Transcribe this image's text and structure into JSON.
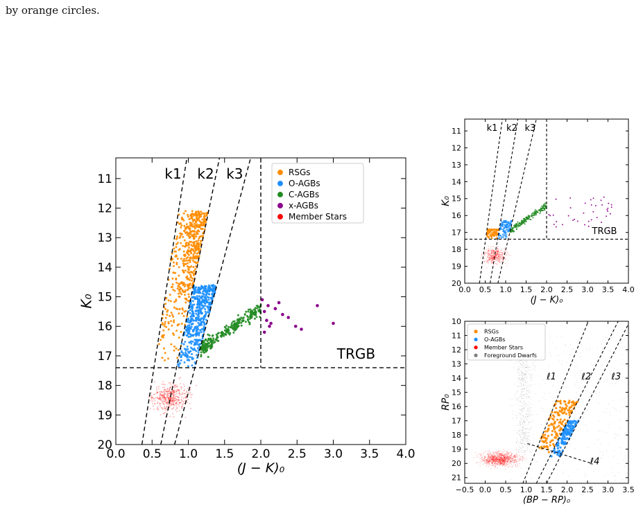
{
  "caption_fragment": "by orange circles.",
  "chart_data": [
    {
      "id": "main",
      "type": "scatter",
      "xlabel": "(J − K)₀",
      "ylabel": "K₀",
      "xlim": [
        0.0,
        4.0
      ],
      "ylim": [
        20,
        10.3
      ],
      "y_inverted": true,
      "xticks": [
        "0.0",
        "0.5",
        "1.0",
        "1.5",
        "2.0",
        "2.5",
        "3.0",
        "3.5",
        "4.0"
      ],
      "yticks": [
        "11",
        "12",
        "13",
        "14",
        "15",
        "16",
        "17",
        "18",
        "19",
        "20"
      ],
      "legend": {
        "placement": "top-right",
        "entries": [
          {
            "label": "RSGs",
            "color": "#ff8c00"
          },
          {
            "label": "O-AGBs",
            "color": "#1e90ff"
          },
          {
            "label": "C-AGBs",
            "color": "#228b22"
          },
          {
            "label": "x-AGBs",
            "color": "#8b008b"
          },
          {
            "label": "Member Stars",
            "color": "#ff0000"
          }
        ]
      },
      "boundaries": [
        {
          "label": "k1",
          "points": [
            [
              0.36,
              20.0
            ],
            [
              0.98,
              10.3
            ]
          ]
        },
        {
          "label": "k2",
          "points": [
            [
              0.62,
              20.0
            ],
            [
              1.43,
              10.3
            ]
          ]
        },
        {
          "label": "k3",
          "points": [
            [
              0.81,
              20.0
            ],
            [
              1.86,
              10.3
            ]
          ]
        },
        {
          "label": "",
          "points": [
            [
              2.0,
              10.3
            ],
            [
              2.0,
              17.4
            ]
          ]
        },
        {
          "label": "TRGB",
          "points": [
            [
              0.0,
              17.4
            ],
            [
              4.0,
              17.4
            ]
          ]
        }
      ],
      "labels": [
        {
          "text": "k1",
          "x": 0.79,
          "y": 11.0
        },
        {
          "text": "k2",
          "x": 1.24,
          "y": 11.0
        },
        {
          "text": "k3",
          "x": 1.64,
          "y": 11.0
        },
        {
          "text": "TRGB",
          "x": 3.58,
          "y": 17.1
        }
      ],
      "populations": [
        {
          "name": "Member Stars",
          "color": "#ff0000",
          "x_range": [
            0.0,
            1.6
          ],
          "y_range": [
            16.3,
            20.0
          ],
          "note": "faint background cloud"
        },
        {
          "name": "RSGs",
          "color": "#ff8c00",
          "between": [
            "k1",
            "k2"
          ],
          "y_range": [
            12.1,
            17.4
          ]
        },
        {
          "name": "O-AGBs",
          "color": "#1e90ff",
          "between": [
            "k2",
            "k3"
          ],
          "y_range": [
            14.6,
            17.4
          ]
        },
        {
          "name": "C-AGBs",
          "color": "#228b22",
          "x_range": [
            1.05,
            2.0
          ],
          "y_range": [
            14.6,
            17.4
          ]
        },
        {
          "name": "x-AGBs",
          "color": "#8b008b",
          "points": [
            [
              2.02,
              15.1
            ],
            [
              2.05,
              15.5
            ],
            [
              2.08,
              15.8
            ],
            [
              2.1,
              15.3
            ],
            [
              2.14,
              15.9
            ],
            [
              2.2,
              15.4
            ],
            [
              2.3,
              15.6
            ],
            [
              2.38,
              15.7
            ],
            [
              2.48,
              16.0
            ],
            [
              2.56,
              16.1
            ],
            [
              2.25,
              15.2
            ],
            [
              2.78,
              15.3
            ],
            [
              3.0,
              15.9
            ],
            [
              2.12,
              16.0
            ],
            [
              2.05,
              16.2
            ]
          ]
        }
      ]
    },
    {
      "id": "top-right",
      "type": "scatter",
      "xlabel": "(J − K)₀",
      "ylabel": "K₀",
      "xlim": [
        0.0,
        4.0
      ],
      "ylim": [
        20,
        10.3
      ],
      "y_inverted": true,
      "xticks": [
        "0.0",
        "0.5",
        "1.0",
        "1.5",
        "2.0",
        "2.5",
        "3.0",
        "3.5",
        "4.0"
      ],
      "yticks": [
        "11",
        "12",
        "13",
        "14",
        "15",
        "16",
        "17",
        "18",
        "19",
        "20"
      ],
      "boundaries": [
        {
          "label": "k1",
          "points": [
            [
              0.36,
              20.0
            ],
            [
              0.92,
              10.3
            ]
          ]
        },
        {
          "label": "k2",
          "points": [
            [
              0.62,
              20.0
            ],
            [
              1.3,
              10.3
            ]
          ]
        },
        {
          "label": "k3",
          "points": [
            [
              0.81,
              20.0
            ],
            [
              1.75,
              10.3
            ]
          ]
        },
        {
          "label": "",
          "points": [
            [
              2.0,
              10.3
            ],
            [
              2.0,
              17.4
            ]
          ]
        },
        {
          "label": "TRGB",
          "points": [
            [
              0.0,
              17.4
            ],
            [
              4.0,
              17.4
            ]
          ]
        }
      ],
      "labels": [
        {
          "text": "k1",
          "x": 0.67,
          "y": 11.0
        },
        {
          "text": "k2",
          "x": 1.15,
          "y": 11.0
        },
        {
          "text": "k3",
          "x": 1.6,
          "y": 11.0
        },
        {
          "text": "TRGB",
          "x": 3.72,
          "y": 17.1
        }
      ],
      "populations": [
        {
          "name": "Member Stars",
          "color": "#ff0000",
          "x_range": [
            0.3,
            1.7
          ],
          "y_range": [
            17.0,
            20.0
          ]
        },
        {
          "name": "RSGs",
          "color": "#ff8c00",
          "between": [
            "k1",
            "k2"
          ],
          "y_range": [
            16.8,
            17.4
          ]
        },
        {
          "name": "O-AGBs",
          "color": "#1e90ff",
          "between": [
            "k2",
            "k3"
          ],
          "y_range": [
            16.3,
            17.4
          ]
        },
        {
          "name": "C-AGBs",
          "color": "#228b22",
          "x_range": [
            1.1,
            2.0
          ],
          "y_range": [
            15.2,
            17.4
          ]
        },
        {
          "name": "x-AGBs",
          "color": "#8b008b",
          "x_range": [
            2.0,
            3.6
          ],
          "y_range": [
            14.9,
            16.9
          ]
        }
      ]
    },
    {
      "id": "bottom-right",
      "type": "scatter",
      "xlabel": "(BP − RP)₀",
      "ylabel": "RP₀",
      "xlim": [
        -0.5,
        3.5
      ],
      "ylim": [
        21.4,
        10.0
      ],
      "y_inverted": true,
      "xticks": [
        "−0.5",
        "0.0",
        "0.5",
        "1.0",
        "1.5",
        "2.0",
        "2.5",
        "3.0",
        "3.5"
      ],
      "yticks": [
        "10",
        "11",
        "12",
        "13",
        "14",
        "15",
        "16",
        "17",
        "18",
        "19",
        "20",
        "21"
      ],
      "legend": {
        "placement": "top-left",
        "entries": [
          {
            "label": "RSGs",
            "color": "#ff8c00"
          },
          {
            "label": "O-AGBs",
            "color": "#1e90ff"
          },
          {
            "label": "Member Stars",
            "color": "#ff0000"
          },
          {
            "label": "Foreground Dwarfs",
            "color": "#808080"
          }
        ]
      },
      "boundaries": [
        {
          "label": "ℓ1",
          "points": [
            [
              0.92,
              21.4
            ],
            [
              2.52,
              10.0
            ]
          ]
        },
        {
          "label": "ℓ2",
          "points": [
            [
              1.25,
              21.4
            ],
            [
              3.25,
              10.0
            ]
          ]
        },
        {
          "label": "ℓ3",
          "points": [
            [
              1.5,
              21.4
            ],
            [
              3.5,
              10.2
            ]
          ]
        },
        {
          "label": "ℓ4",
          "points": [
            [
              1.03,
              18.6
            ],
            [
              2.6,
              20.0
            ]
          ]
        }
      ],
      "labels": [
        {
          "text": "ℓ1",
          "x": 1.62,
          "y": 14.1
        },
        {
          "text": "ℓ2",
          "x": 2.47,
          "y": 14.1
        },
        {
          "text": "ℓ3",
          "x": 3.2,
          "y": 14.1
        },
        {
          "text": "ℓ4",
          "x": 2.68,
          "y": 20.05
        }
      ],
      "populations": [
        {
          "name": "Foreground Dwarfs",
          "color": "#808080",
          "x_range": [
            0.5,
            3.5
          ],
          "y_range": [
            10.0,
            21.4
          ]
        },
        {
          "name": "Member Stars",
          "color": "#ff0000",
          "x_range": [
            -0.5,
            2.2
          ],
          "y_range": [
            18.0,
            21.4
          ]
        },
        {
          "name": "RSGs",
          "color": "#ff8c00",
          "between": [
            "ℓ1",
            "ℓ2"
          ],
          "y_range": [
            15.6,
            19.4
          ]
        },
        {
          "name": "O-AGBs",
          "color": "#1e90ff",
          "between": [
            "ℓ2",
            "ℓ3"
          ],
          "y_range": [
            17.0,
            19.6
          ]
        }
      ]
    }
  ]
}
